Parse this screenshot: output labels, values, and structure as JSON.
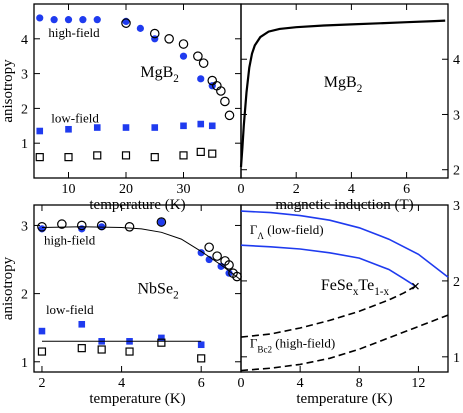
{
  "chart_data": [
    {
      "id": "p1",
      "type": "scatter",
      "xlabel": "temperature (K)",
      "ylabel": "anisotropy",
      "xlim": [
        4,
        40
      ],
      "ylim": [
        0,
        5
      ],
      "xticks": [
        10,
        20,
        30
      ],
      "xticklabels": [
        "10",
        "20",
        "30"
      ],
      "yticks": [
        1,
        2,
        3,
        4
      ],
      "yticklabels": [
        "1",
        "2",
        "3",
        "4"
      ],
      "annotations": [
        {
          "text": "high-field",
          "x": 6.5,
          "y": 4.05
        },
        {
          "text": "low-field",
          "x": 7,
          "y": 1.6
        }
      ],
      "annotation_main": {
        "text": "MgB",
        "sub": "2",
        "x": 22.5,
        "y": 2.9
      },
      "series": [
        {
          "marker": "circle-filled",
          "color": "#1f3bef",
          "x": [
            5,
            7.5,
            10,
            12.5,
            15,
            20,
            22.5,
            25,
            30,
            33,
            35
          ],
          "y": [
            4.6,
            4.55,
            4.55,
            4.55,
            4.55,
            4.5,
            4.3,
            4.0,
            3.5,
            2.85,
            2.65
          ]
        },
        {
          "marker": "circle-open",
          "color": "#000000",
          "x": [
            20,
            25,
            27.5,
            30,
            32.5,
            33.5,
            35,
            35.8,
            36.5,
            37.2,
            38
          ],
          "y": [
            4.45,
            4.15,
            4.0,
            3.85,
            3.5,
            3.3,
            2.8,
            2.65,
            2.5,
            2.2,
            1.8
          ]
        },
        {
          "marker": "square-filled",
          "color": "#1f3bef",
          "x": [
            5,
            10,
            15,
            20,
            25,
            30,
            33,
            35
          ],
          "y": [
            1.35,
            1.4,
            1.45,
            1.45,
            1.45,
            1.5,
            1.55,
            1.5
          ]
        },
        {
          "marker": "square-open",
          "color": "#000000",
          "x": [
            5,
            10,
            15,
            20,
            25,
            30,
            33,
            35
          ],
          "y": [
            0.6,
            0.6,
            0.65,
            0.65,
            0.6,
            0.65,
            0.75,
            0.7
          ]
        }
      ]
    },
    {
      "id": "p2",
      "type": "line",
      "xlabel": "magnetic induction (T)",
      "xlim": [
        0,
        7.5
      ],
      "ylim": [
        1.85,
        5
      ],
      "xticks": [
        0,
        2,
        4,
        6
      ],
      "xticklabels": [
        "0",
        "2",
        "4",
        "6"
      ],
      "yticks": [
        2,
        3,
        4
      ],
      "yticklabels": [
        "2",
        "3",
        "4"
      ],
      "y_axis_side": "right",
      "annotation_main": {
        "text": "MgB",
        "sub": "2",
        "x": 3.0,
        "y": 3.5
      },
      "series": [
        {
          "color": "#000000",
          "x": [
            0.0,
            0.05,
            0.1,
            0.2,
            0.3,
            0.4,
            0.5,
            0.7,
            1.0,
            1.4,
            2.0,
            3.0,
            4.0,
            5.0,
            6.0,
            7.0,
            7.4
          ],
          "y": [
            2.05,
            2.4,
            2.8,
            3.4,
            3.85,
            4.1,
            4.25,
            4.4,
            4.5,
            4.55,
            4.58,
            4.61,
            4.63,
            4.65,
            4.67,
            4.69,
            4.7
          ]
        }
      ]
    },
    {
      "id": "p3",
      "type": "scatter",
      "xlabel": "temperature (K)",
      "ylabel": "anisotropy",
      "xlim": [
        1.8,
        7.0
      ],
      "ylim": [
        0.85,
        3.3
      ],
      "xticks": [
        2,
        4,
        6
      ],
      "xticklabels": [
        "2",
        "4",
        "6"
      ],
      "yticks": [
        1,
        2,
        3
      ],
      "yticklabels": [
        "1",
        "2",
        "3"
      ],
      "annotations": [
        {
          "text": "high-field",
          "x": 2.05,
          "y": 2.72
        },
        {
          "text": "low-field",
          "x": 2.1,
          "y": 1.7
        }
      ],
      "annotation_main": {
        "text": "NbSe",
        "sub": "2",
        "x": 4.4,
        "y": 2.0
      },
      "series": [
        {
          "marker": "circle-filled",
          "color": "#1f3bef",
          "x": [
            2,
            3,
            3.5,
            5,
            6,
            6.2,
            6.5,
            6.7
          ],
          "y": [
            2.95,
            2.95,
            2.98,
            3.05,
            2.6,
            2.5,
            2.4,
            2.3
          ]
        },
        {
          "marker": "circle-open",
          "color": "#000000",
          "x": [
            2,
            2.5,
            3,
            3.5,
            4.2,
            5,
            6.2,
            6.4,
            6.6,
            6.7,
            6.8,
            6.9
          ],
          "y": [
            2.98,
            3.02,
            3.0,
            3.0,
            2.98,
            3.05,
            2.68,
            2.55,
            2.48,
            2.42,
            2.3,
            2.25
          ]
        },
        {
          "marker": "square-filled",
          "color": "#1f3bef",
          "x": [
            2,
            3,
            3.5,
            4.2,
            5,
            6
          ],
          "y": [
            1.45,
            1.55,
            1.3,
            1.3,
            1.35,
            1.25
          ]
        },
        {
          "marker": "square-open",
          "color": "#000000",
          "x": [
            2,
            3,
            3.5,
            4.2,
            5,
            6
          ],
          "y": [
            1.15,
            1.2,
            1.18,
            1.15,
            1.28,
            1.05
          ]
        },
        {
          "type": "line",
          "color": "#000000",
          "x": [
            2.0,
            3.0,
            4.0,
            4.5,
            5.0,
            5.5,
            6.0,
            6.5,
            7.0
          ],
          "y": [
            2.97,
            2.98,
            2.97,
            2.95,
            2.9,
            2.8,
            2.62,
            2.42,
            2.2
          ]
        },
        {
          "type": "line",
          "color": "#000000",
          "x": [
            2.0,
            6.0
          ],
          "y": [
            1.3,
            1.3
          ]
        }
      ]
    },
    {
      "id": "p4",
      "type": "line",
      "xlabel": "temperature (K)",
      "xlim": [
        0,
        14
      ],
      "ylim": [
        0.8,
        3.0
      ],
      "xticks": [
        0,
        4,
        8,
        12
      ],
      "xticklabels": [
        "0",
        "4",
        "8",
        "12"
      ],
      "yticks": [
        1,
        2,
        3
      ],
      "yticklabels": [
        "1",
        "2",
        "3"
      ],
      "y_axis_side": "right",
      "labels": [
        {
          "main": "Γ",
          "sub": "Λ",
          "rest": " (low-field)",
          "x": 0.6,
          "y": 2.62
        },
        {
          "main": "FeSe",
          "sub": "x",
          "mid": "Te",
          "sub2": "1-x",
          "x": 5.4,
          "y": 1.88
        },
        {
          "main": "Γ",
          "sub": "Bc2",
          "rest": " (high-field)",
          "x": 0.6,
          "y": 1.12
        }
      ],
      "series": [
        {
          "color": "#1f3bef",
          "dash": false,
          "x": [
            0,
            2,
            4,
            6,
            8,
            10,
            12,
            14
          ],
          "y": [
            2.92,
            2.9,
            2.86,
            2.8,
            2.7,
            2.55,
            2.35,
            2.05
          ]
        },
        {
          "color": "#1f3bef",
          "dash": false,
          "x": [
            0,
            2,
            4,
            6,
            8,
            10,
            11,
            11.8
          ],
          "y": [
            2.47,
            2.45,
            2.42,
            2.37,
            2.3,
            2.15,
            2.03,
            1.93
          ]
        },
        {
          "color": "#000000",
          "dash": true,
          "x": [
            0,
            2,
            4,
            6,
            8,
            10,
            11,
            11.8
          ],
          "y": [
            1.26,
            1.3,
            1.38,
            1.48,
            1.6,
            1.75,
            1.84,
            1.93
          ]
        },
        {
          "color": "#000000",
          "dash": true,
          "x": [
            0,
            2,
            4,
            6,
            8,
            10,
            12,
            14
          ],
          "y": [
            0.82,
            0.85,
            0.9,
            0.98,
            1.1,
            1.25,
            1.4,
            1.55
          ]
        }
      ],
      "marker_x": {
        "x": 11.8,
        "y": 1.93
      }
    }
  ]
}
